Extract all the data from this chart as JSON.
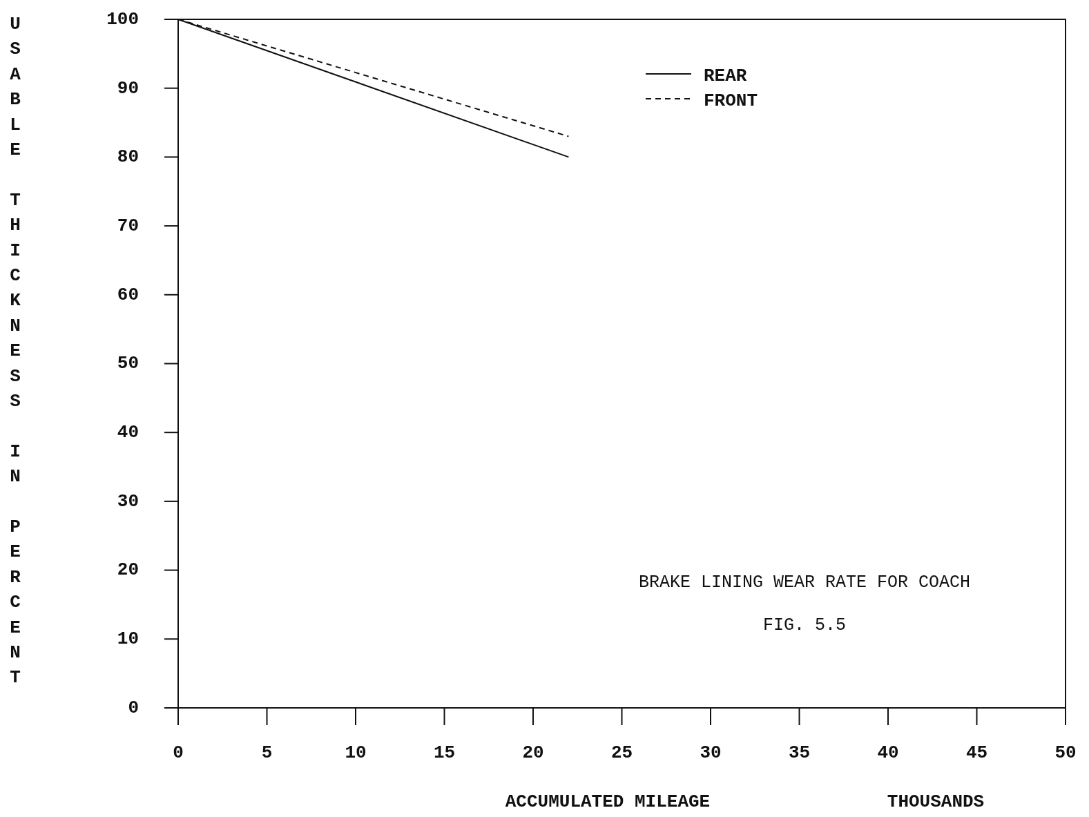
{
  "chart_data": {
    "type": "line",
    "title": "BRAKE LINING WEAR RATE FOR COACH",
    "subtitle": "FIG. 5.5",
    "xlabel": "ACCUMULATED MILEAGE",
    "ylabel": "USABLE THICKNESS IN PERCENT",
    "annotations": [
      "THOUSANDS"
    ],
    "xlim": [
      0,
      50
    ],
    "xticks": [
      0,
      5,
      10,
      15,
      20,
      25,
      30,
      35,
      40,
      45,
      50
    ],
    "ylim": [
      0,
      100
    ],
    "yticks": [
      0,
      10,
      20,
      30,
      40,
      50,
      60,
      70,
      80,
      90,
      100
    ],
    "grid": false,
    "legend": "top right",
    "series": [
      {
        "name": "REAR",
        "color": "#111111",
        "line_style": "solid",
        "x": [
          0,
          11,
          22
        ],
        "values": [
          100,
          90,
          80
        ]
      },
      {
        "name": "FRONT",
        "color": "#111111",
        "line_style": "dashed",
        "x": [
          0,
          11,
          22
        ],
        "values": [
          100,
          91.5,
          83
        ]
      }
    ]
  }
}
